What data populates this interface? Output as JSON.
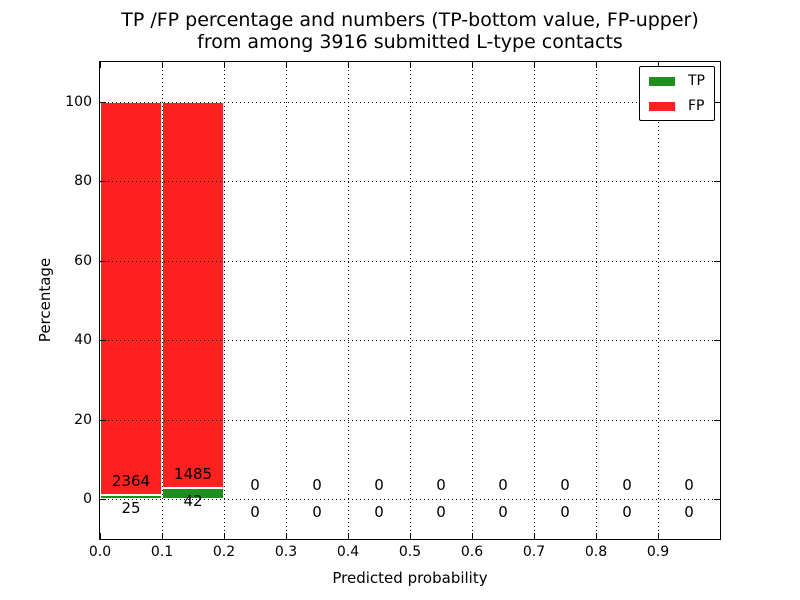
{
  "figure": {
    "background": "#ffffff",
    "text_color": "#000000"
  },
  "chart_data": {
    "type": "bar",
    "stacked": true,
    "title_line1": "TP /FP percentage and numbers (TP-bottom value, FP-upper)",
    "title_line2": "from among 3916 submitted L-type contacts",
    "title": "TP /FP percentage and numbers (TP-bottom value, FP-upper) from among 3916 submitted L-type contacts",
    "xlabel": "Predicted probability",
    "ylabel": "Percentage",
    "total_submitted_contacts": 3916,
    "xlim": [
      0.0,
      1.0
    ],
    "ylim": [
      -10,
      110
    ],
    "xtick_labels": [
      "0.0",
      "0.1",
      "0.2",
      "0.3",
      "0.4",
      "0.5",
      "0.6",
      "0.7",
      "0.8",
      "0.9"
    ],
    "xtick_values": [
      0.0,
      0.1,
      0.2,
      0.3,
      0.4,
      0.5,
      0.6,
      0.7,
      0.8,
      0.9
    ],
    "ytick_labels": [
      "0",
      "20",
      "40",
      "60",
      "80",
      "100"
    ],
    "ytick_values": [
      0,
      20,
      40,
      60,
      80,
      100
    ],
    "grid": {
      "style": "dotted",
      "color": "#000000",
      "on_top": true
    },
    "bin_edges": [
      0.0,
      0.1,
      0.2,
      0.3,
      0.4,
      0.5,
      0.6,
      0.7,
      0.8,
      0.9,
      1.0
    ],
    "series": [
      {
        "name": "TP",
        "color": "#1e8f1e",
        "stack_position": "bottom",
        "counts": [
          25,
          42,
          0,
          0,
          0,
          0,
          0,
          0,
          0,
          0
        ],
        "pct": [
          1.05,
          2.75,
          0,
          0,
          0,
          0,
          0,
          0,
          0,
          0
        ]
      },
      {
        "name": "FP",
        "color": "#ff2020",
        "stack_position": "upper",
        "counts": [
          2364,
          1485,
          0,
          0,
          0,
          0,
          0,
          0,
          0,
          0
        ],
        "pct": [
          98.95,
          97.25,
          0,
          0,
          0,
          0,
          0,
          0,
          0,
          0
        ]
      }
    ],
    "legend": {
      "position": "upper right",
      "entries": [
        {
          "label": "TP",
          "color": "#1e8f1e"
        },
        {
          "label": "FP",
          "color": "#ff2020"
        }
      ]
    }
  }
}
